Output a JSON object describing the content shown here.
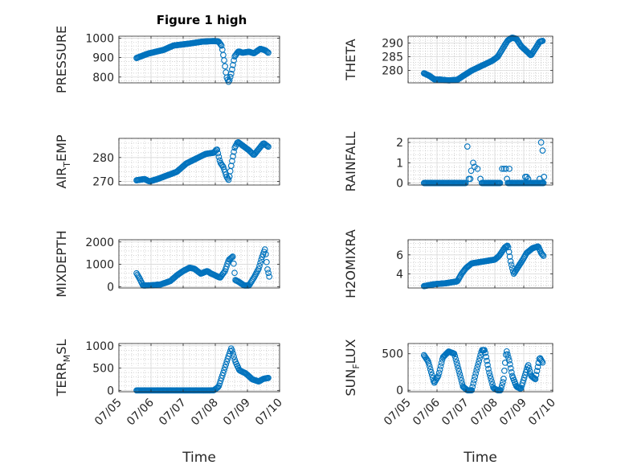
{
  "figure_title": "Figure 1 high",
  "chart_data": [
    {
      "type": "scatter",
      "id": "pressure",
      "ylabel": "PRESSURE",
      "ylabel_parts": [
        "PRESSURE"
      ],
      "xlim": [
        0,
        5
      ],
      "ylim": [
        770,
        1010
      ],
      "yticks": [
        800,
        900,
        1000
      ],
      "xticks": [
        0,
        1,
        2,
        3,
        4,
        5
      ],
      "xtick_labels": [],
      "keyframes": [
        [
          0.55,
          898
        ],
        [
          0.9,
          920
        ],
        [
          1.4,
          940
        ],
        [
          1.7,
          962
        ],
        [
          2.2,
          972
        ],
        [
          2.6,
          982
        ],
        [
          2.95,
          985
        ],
        [
          3.1,
          983
        ],
        [
          3.2,
          960
        ],
        [
          3.28,
          880
        ],
        [
          3.35,
          800
        ],
        [
          3.42,
          772
        ],
        [
          3.5,
          820
        ],
        [
          3.6,
          905
        ],
        [
          3.72,
          932
        ],
        [
          3.85,
          925
        ],
        [
          4.05,
          930
        ],
        [
          4.2,
          922
        ],
        [
          4.4,
          945
        ],
        [
          4.55,
          938
        ],
        [
          4.65,
          925
        ]
      ],
      "n_points": 150
    },
    {
      "type": "scatter",
      "id": "theta",
      "ylabel": "THETA",
      "ylabel_parts": [
        "THETA"
      ],
      "xlim": [
        0,
        5
      ],
      "ylim": [
        275.5,
        292.5
      ],
      "yticks": [
        280,
        285,
        290
      ],
      "xticks": [
        0,
        1,
        2,
        3,
        4,
        5
      ],
      "xtick_labels": [],
      "keyframes": [
        [
          0.55,
          279
        ],
        [
          0.75,
          278
        ],
        [
          0.9,
          276.8
        ],
        [
          1.1,
          276.7
        ],
        [
          1.4,
          276.4
        ],
        [
          1.7,
          276.6
        ],
        [
          1.9,
          278
        ],
        [
          2.2,
          280
        ],
        [
          2.6,
          282
        ],
        [
          2.9,
          283.5
        ],
        [
          3.1,
          285
        ],
        [
          3.3,
          288.5
        ],
        [
          3.45,
          291
        ],
        [
          3.6,
          292
        ],
        [
          3.75,
          291.5
        ],
        [
          3.9,
          289
        ],
        [
          4.05,
          287.5
        ],
        [
          4.25,
          285.5
        ],
        [
          4.4,
          288
        ],
        [
          4.55,
          290.5
        ],
        [
          4.65,
          290.8
        ]
      ],
      "n_points": 150
    },
    {
      "type": "scatter",
      "id": "air_temp",
      "ylabel": "AIR_TEMP",
      "ylabel_parts": [
        "AIR",
        "T",
        "EMP"
      ],
      "xlim": [
        0,
        5
      ],
      "ylim": [
        268.5,
        288
      ],
      "yticks": [
        270,
        280
      ],
      "xticks": [
        0,
        1,
        2,
        3,
        4,
        5
      ],
      "xtick_labels": [],
      "keyframes": [
        [
          0.55,
          270.5
        ],
        [
          0.8,
          271
        ],
        [
          0.95,
          270
        ],
        [
          1.2,
          271
        ],
        [
          1.5,
          272.5
        ],
        [
          1.8,
          274
        ],
        [
          2.1,
          277.5
        ],
        [
          2.4,
          279.5
        ],
        [
          2.7,
          281.5
        ],
        [
          2.95,
          282
        ],
        [
          3.05,
          283.5
        ],
        [
          3.15,
          278
        ],
        [
          3.25,
          276
        ],
        [
          3.35,
          272
        ],
        [
          3.42,
          270.5
        ],
        [
          3.5,
          277
        ],
        [
          3.6,
          284
        ],
        [
          3.7,
          286.5
        ],
        [
          3.85,
          285
        ],
        [
          4.05,
          283
        ],
        [
          4.2,
          281
        ],
        [
          4.35,
          283.5
        ],
        [
          4.5,
          286
        ],
        [
          4.65,
          284.5
        ]
      ],
      "n_points": 150
    },
    {
      "type": "scatter",
      "id": "rainfall",
      "ylabel": "RAINFALL",
      "ylabel_parts": [
        "RAINFALL"
      ],
      "xlim": [
        0,
        5
      ],
      "ylim": [
        -0.1,
        2.2
      ],
      "yticks": [
        0,
        1,
        2
      ],
      "xticks": [
        0,
        1,
        2,
        3,
        4,
        5
      ],
      "xtick_labels": [],
      "baseline": 0,
      "baseline_ranges": [
        [
          0.55,
          2.0
        ],
        [
          2.55,
          3.2
        ],
        [
          3.45,
          4.7
        ]
      ],
      "spikes": [
        [
          2.05,
          1.8
        ],
        [
          2.1,
          0.2
        ],
        [
          2.15,
          0.2
        ],
        [
          2.18,
          0.6
        ],
        [
          2.25,
          1.0
        ],
        [
          2.3,
          0.8
        ],
        [
          2.4,
          0.7
        ],
        [
          2.5,
          0.2
        ],
        [
          3.25,
          0.7
        ],
        [
          3.32,
          0.7
        ],
        [
          3.38,
          0.7
        ],
        [
          3.42,
          0.2
        ],
        [
          3.5,
          0.7
        ],
        [
          4.05,
          0.3
        ],
        [
          4.1,
          0.3
        ],
        [
          4.15,
          0.2
        ],
        [
          4.55,
          0.2
        ],
        [
          4.6,
          2.0
        ],
        [
          4.65,
          1.6
        ],
        [
          4.7,
          0.3
        ]
      ]
    },
    {
      "type": "scatter",
      "id": "mixdepth",
      "ylabel": "MIXDEPTH",
      "ylabel_parts": [
        "MIXDEPTH"
      ],
      "xlim": [
        0,
        5
      ],
      "ylim": [
        -60,
        2100
      ],
      "yticks": [
        0,
        1000,
        2000
      ],
      "xticks": [
        0,
        1,
        2,
        3,
        4,
        5
      ],
      "xtick_labels": [],
      "keyframes": [
        [
          0.55,
          600
        ],
        [
          0.65,
          350
        ],
        [
          0.75,
          50
        ],
        [
          1.0,
          60
        ],
        [
          1.3,
          100
        ],
        [
          1.6,
          250
        ],
        [
          1.8,
          500
        ],
        [
          2.0,
          700
        ],
        [
          2.2,
          850
        ],
        [
          2.35,
          800
        ],
        [
          2.55,
          580
        ],
        [
          2.75,
          700
        ],
        [
          2.85,
          600
        ],
        [
          3.0,
          500
        ],
        [
          3.15,
          400
        ],
        [
          3.3,
          700
        ],
        [
          3.42,
          1200
        ],
        [
          3.55,
          1350
        ],
        [
          3.62,
          300
        ],
        [
          3.75,
          200
        ],
        [
          3.9,
          50
        ],
        [
          4.05,
          50
        ],
        [
          4.2,
          400
        ],
        [
          4.35,
          800
        ],
        [
          4.45,
          1300
        ],
        [
          4.55,
          1700
        ],
        [
          4.62,
          800
        ],
        [
          4.68,
          450
        ]
      ],
      "n_points": 150
    },
    {
      "type": "scatter",
      "id": "h2omixra",
      "ylabel": "H2OMIXRA",
      "ylabel_parts": [
        "H2OMIXRA"
      ],
      "xlim": [
        0,
        5
      ],
      "ylim": [
        2.5,
        7.6
      ],
      "yticks": [
        4,
        6
      ],
      "xticks": [
        0,
        1,
        2,
        3,
        4,
        5
      ],
      "xtick_labels": [],
      "keyframes": [
        [
          0.55,
          2.7
        ],
        [
          0.9,
          2.9
        ],
        [
          1.3,
          3.0
        ],
        [
          1.7,
          3.2
        ],
        [
          1.85,
          4.0
        ],
        [
          2.0,
          4.6
        ],
        [
          2.2,
          5.1
        ],
        [
          2.6,
          5.3
        ],
        [
          3.0,
          5.5
        ],
        [
          3.15,
          5.9
        ],
        [
          3.35,
          6.8
        ],
        [
          3.45,
          7.0
        ],
        [
          3.55,
          5.2
        ],
        [
          3.65,
          4.0
        ],
        [
          3.8,
          4.7
        ],
        [
          3.95,
          5.4
        ],
        [
          4.1,
          6.2
        ],
        [
          4.3,
          6.7
        ],
        [
          4.5,
          6.9
        ],
        [
          4.6,
          6.2
        ],
        [
          4.68,
          5.9
        ]
      ],
      "n_points": 150
    },
    {
      "type": "scatter",
      "id": "terr_msl",
      "ylabel": "TERR_MSL",
      "ylabel_parts": [
        "TERR",
        "M",
        "SL"
      ],
      "xlim": [
        0,
        5
      ],
      "ylim": [
        -30,
        1050
      ],
      "yticks": [
        0,
        500,
        1000
      ],
      "xticks": [
        0,
        1,
        2,
        3,
        4,
        5
      ],
      "xtick_labels": [
        "07/05",
        "07/06",
        "07/07",
        "07/08",
        "07/09",
        "07/10"
      ],
      "xlabel": "Time",
      "keyframes": [
        [
          0.55,
          0
        ],
        [
          1.5,
          0
        ],
        [
          2.5,
          0
        ],
        [
          2.95,
          2
        ],
        [
          3.1,
          80
        ],
        [
          3.25,
          400
        ],
        [
          3.38,
          700
        ],
        [
          3.5,
          950
        ],
        [
          3.62,
          650
        ],
        [
          3.75,
          450
        ],
        [
          3.95,
          380
        ],
        [
          4.15,
          250
        ],
        [
          4.35,
          200
        ],
        [
          4.5,
          260
        ],
        [
          4.65,
          280
        ]
      ],
      "n_points": 150
    },
    {
      "type": "scatter",
      "id": "sunflux",
      "ylabel": "SUN_FLUX",
      "ylabel_parts": [
        "SUN",
        "F",
        "LUX"
      ],
      "xlim": [
        0,
        5
      ],
      "ylim": [
        -20,
        640
      ],
      "yticks": [
        0,
        500
      ],
      "xticks": [
        0,
        1,
        2,
        3,
        4,
        5
      ],
      "xtick_labels": [
        "07/05",
        "07/06",
        "07/07",
        "07/08",
        "07/09",
        "07/10"
      ],
      "xlabel": "Time",
      "keyframes": [
        [
          0.55,
          480
        ],
        [
          0.7,
          390
        ],
        [
          0.9,
          100
        ],
        [
          1.05,
          200
        ],
        [
          1.2,
          450
        ],
        [
          1.4,
          530
        ],
        [
          1.6,
          500
        ],
        [
          1.8,
          200
        ],
        [
          1.9,
          50
        ],
        [
          2.05,
          0
        ],
        [
          2.2,
          0
        ],
        [
          2.35,
          250
        ],
        [
          2.55,
          550
        ],
        [
          2.65,
          550
        ],
        [
          2.8,
          250
        ],
        [
          2.95,
          30
        ],
        [
          3.1,
          0
        ],
        [
          3.2,
          0
        ],
        [
          3.3,
          150
        ],
        [
          3.4,
          550
        ],
        [
          3.5,
          400
        ],
        [
          3.6,
          200
        ],
        [
          3.75,
          50
        ],
        [
          3.9,
          20
        ],
        [
          4.0,
          150
        ],
        [
          4.15,
          350
        ],
        [
          4.25,
          200
        ],
        [
          4.4,
          150
        ],
        [
          4.55,
          450
        ],
        [
          4.65,
          380
        ]
      ],
      "n_points": 150
    }
  ]
}
